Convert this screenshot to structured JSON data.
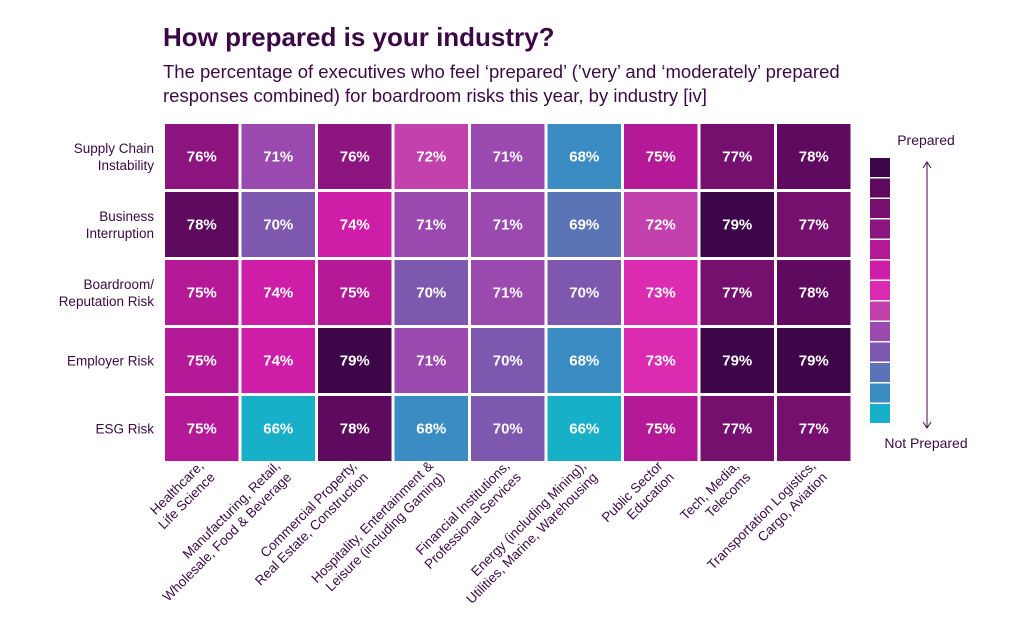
{
  "title": "How prepared is your industry?",
  "subtitle": "The percentage of executives who feel ‘prepared’ (’very’ and ‘moderately’ prepared responses combined) for boardroom risks this year, by industry [iv]",
  "chart_data": {
    "type": "heatmap",
    "title": "How prepared is your industry?",
    "rows": [
      [
        "Supply Chain",
        "Instability"
      ],
      [
        "Business",
        "Interruption"
      ],
      [
        "Boardroom/",
        "Reputation Risk"
      ],
      [
        "Employer Risk"
      ],
      [
        "ESG Risk"
      ]
    ],
    "columns": [
      [
        "Healthcare,",
        "Life Science"
      ],
      [
        "Manufacturing, Retail,",
        "Wholesale, Food & Beverage"
      ],
      [
        "Commercial Property,",
        "Real Estate, Construction"
      ],
      [
        "Hospitality, Entertainment &",
        "Leisure (including Gaming)"
      ],
      [
        "Financial Institutions,",
        "Professional Services"
      ],
      [
        "Energy (including Mining),",
        "Utilities, Marine, Warehousing"
      ],
      [
        "Public Sector",
        "Education"
      ],
      [
        "Tech, Media,",
        "Telecoms"
      ],
      [
        "Transportation Logistics,",
        "Cargo, Aviation"
      ]
    ],
    "values": [
      [
        76,
        71,
        76,
        72,
        71,
        68,
        75,
        77,
        78
      ],
      [
        78,
        70,
        74,
        71,
        71,
        69,
        72,
        79,
        77
      ],
      [
        75,
        74,
        75,
        70,
        71,
        70,
        73,
        77,
        78
      ],
      [
        75,
        74,
        79,
        71,
        70,
        68,
        73,
        79,
        79
      ],
      [
        75,
        66,
        78,
        68,
        70,
        66,
        75,
        77,
        77
      ]
    ],
    "value_suffix": "%",
    "legend": {
      "top_label": "Prepared",
      "bottom_label": "Not Prepared",
      "placement": "right",
      "colors_top_to_bottom": [
        "#3d0648",
        "#5e0a5e",
        "#75106f",
        "#8c1580",
        "#b41a98",
        "#ce1ea8",
        "#db2bb1",
        "#c241ad",
        "#9a4aae",
        "#7e58ae",
        "#5b74b5",
        "#3a8cc2",
        "#18b0c8"
      ]
    },
    "value_colors": {
      "66": "#18b0c8",
      "68": "#3a8cc2",
      "69": "#5b74b5",
      "70": "#7e58ae",
      "71": "#9a4aae",
      "72": "#c241ad",
      "73": "#db2bb1",
      "74": "#ce1ea8",
      "75": "#b41a98",
      "76": "#8c1580",
      "77": "#75106f",
      "78": "#5e0a5e",
      "79": "#3d0648"
    }
  }
}
